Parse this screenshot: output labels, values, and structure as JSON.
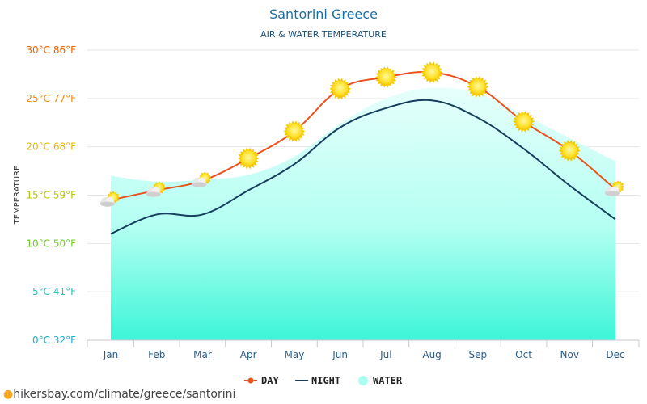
{
  "chart_data": {
    "type": "line",
    "title": "Santorini Greece",
    "subtitle": "AIR & WATER TEMPERATURE",
    "ylabel": "TEMPERATURE",
    "categories": [
      "Jan",
      "Feb",
      "Mar",
      "Apr",
      "May",
      "Jun",
      "Jul",
      "Aug",
      "Sep",
      "Oct",
      "Nov",
      "Dec"
    ],
    "ylim": [
      0,
      30
    ],
    "yticks": [
      {
        "value": 0,
        "label": "0°C 32°F",
        "color": "#1ab0c8"
      },
      {
        "value": 5,
        "label": "5°C 41°F",
        "color": "#2cc0c0"
      },
      {
        "value": 10,
        "label": "10°C 50°F",
        "color": "#6ccc22"
      },
      {
        "value": 15,
        "label": "15°C 59°F",
        "color": "#b8c400"
      },
      {
        "value": 20,
        "label": "20°C 68°F",
        "color": "#e8b800"
      },
      {
        "value": 25,
        "label": "25°C 77°F",
        "color": "#f08a00"
      },
      {
        "value": 30,
        "label": "30°C 86°F",
        "color": "#f06000"
      }
    ],
    "grid": true,
    "legend_position": "bottom-center",
    "series": [
      {
        "name": "DAY",
        "color": "#e8531f",
        "values": [
          14.5,
          15.5,
          16.5,
          18.8,
          21.6,
          26.0,
          27.2,
          27.7,
          26.2,
          22.6,
          19.6,
          15.6
        ]
      },
      {
        "name": "NIGHT",
        "color": "#163f5e",
        "values": [
          11.0,
          13.0,
          13.0,
          15.5,
          18.2,
          22.0,
          24.0,
          24.8,
          23.0,
          19.8,
          16.0,
          12.5
        ]
      },
      {
        "name": "WATER",
        "color": "#a8fff0",
        "values": [
          17.0,
          16.4,
          16.6,
          17.1,
          19.0,
          22.4,
          25.0,
          26.1,
          25.5,
          23.3,
          20.9,
          18.5
        ]
      }
    ],
    "weather_icons": [
      "partly-cloudy-icon",
      "partly-cloudy-icon",
      "partly-cloudy-icon",
      "sun-icon",
      "sun-icon",
      "sun-icon",
      "sun-icon",
      "sun-icon",
      "sun-icon",
      "sun-icon",
      "sun-icon",
      "partly-cloudy-icon"
    ]
  },
  "watermark": "hikersbay.com/climate/greece/santorini"
}
